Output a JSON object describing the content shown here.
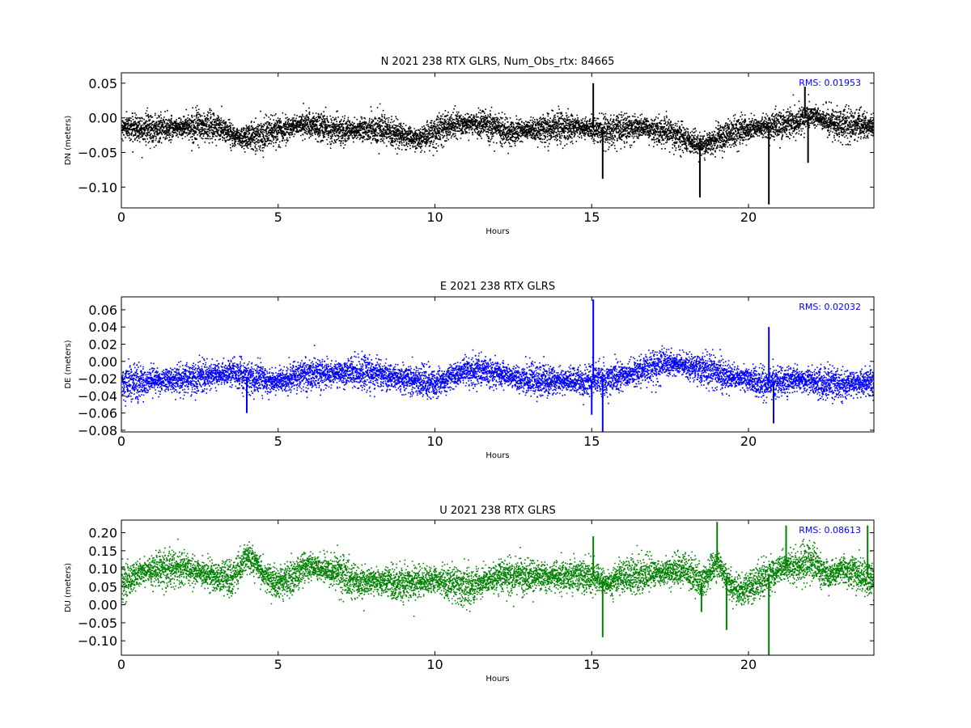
{
  "chart_data": [
    {
      "type": "scatter",
      "title": "N 2021 238 RTX  GLRS, Num_Obs_rtx: 84665",
      "xlabel": "Hours",
      "ylabel": "DN (meters)",
      "xlim": [
        0,
        24
      ],
      "ylim": [
        -0.13,
        0.065
      ],
      "xticks": [
        0,
        5,
        10,
        15,
        20
      ],
      "yticks": [
        0.05,
        0.0,
        -0.05,
        -0.1
      ],
      "ytick_labels": [
        "0.05",
        "0.00",
        "−0.05",
        "−0.10"
      ],
      "color": "#000000",
      "annotation": "RMS:  0.01953",
      "annotation_color": "#0000ff",
      "baseline": [
        [
          0,
          -0.012
        ],
        [
          1,
          -0.015
        ],
        [
          2,
          -0.012
        ],
        [
          3,
          -0.012
        ],
        [
          3.8,
          -0.028
        ],
        [
          5,
          -0.018
        ],
        [
          5.7,
          -0.008
        ],
        [
          7,
          -0.018
        ],
        [
          8,
          -0.015
        ],
        [
          9.5,
          -0.03
        ],
        [
          10.5,
          -0.01
        ],
        [
          11.5,
          -0.008
        ],
        [
          12.5,
          -0.02
        ],
        [
          13.5,
          -0.015
        ],
        [
          14.5,
          -0.012
        ],
        [
          15.5,
          -0.018
        ],
        [
          16.5,
          -0.012
        ],
        [
          17.5,
          -0.02
        ],
        [
          18.5,
          -0.04
        ],
        [
          19.5,
          -0.02
        ],
        [
          20.5,
          -0.012
        ],
        [
          21.5,
          -0.005
        ],
        [
          22,
          0.005
        ],
        [
          22.5,
          -0.005
        ],
        [
          23,
          -0.01
        ],
        [
          24,
          -0.012
        ]
      ],
      "spikes": [
        [
          15.05,
          0.05
        ],
        [
          15.35,
          -0.088
        ],
        [
          18.45,
          -0.115
        ],
        [
          20.65,
          -0.125
        ],
        [
          21.8,
          0.045
        ],
        [
          21.9,
          -0.065
        ]
      ]
    },
    {
      "type": "scatter",
      "title": "E 2021 238 RTX  GLRS",
      "xlabel": "Hours",
      "ylabel": "DE (meters)",
      "xlim": [
        0,
        24
      ],
      "ylim": [
        -0.082,
        0.075
      ],
      "xticks": [
        0,
        5,
        10,
        15,
        20
      ],
      "yticks": [
        0.06,
        0.04,
        0.02,
        0.0,
        -0.02,
        -0.04,
        -0.06,
        -0.08
      ],
      "ytick_labels": [
        "0.06",
        "0.04",
        "0.02",
        "0.00",
        "−0.02",
        "−0.04",
        "−0.06",
        "−0.08"
      ],
      "color": "#0000ff",
      "annotation": "RMS:  0.02032",
      "annotation_color": "#0000ff",
      "baseline": [
        [
          0,
          -0.025
        ],
        [
          1,
          -0.022
        ],
        [
          2,
          -0.02
        ],
        [
          3,
          -0.015
        ],
        [
          3.5,
          -0.012
        ],
        [
          4,
          -0.018
        ],
        [
          5,
          -0.022
        ],
        [
          6,
          -0.015
        ],
        [
          7,
          -0.012
        ],
        [
          8,
          -0.012
        ],
        [
          9,
          -0.02
        ],
        [
          10,
          -0.025
        ],
        [
          11,
          -0.01
        ],
        [
          11.5,
          -0.01
        ],
        [
          12.5,
          -0.018
        ],
        [
          13.5,
          -0.022
        ],
        [
          14.5,
          -0.022
        ],
        [
          15.5,
          -0.02
        ],
        [
          16.5,
          -0.01
        ],
        [
          17.5,
          -0.002
        ],
        [
          18.5,
          -0.008
        ],
        [
          19.5,
          -0.018
        ],
        [
          20.5,
          -0.025
        ],
        [
          21.5,
          -0.02
        ],
        [
          22.5,
          -0.025
        ],
        [
          24,
          -0.025
        ]
      ],
      "spikes": [
        [
          15.05,
          0.072
        ],
        [
          15.0,
          -0.062
        ],
        [
          15.35,
          -0.082
        ],
        [
          20.65,
          0.04
        ],
        [
          20.8,
          -0.072
        ],
        [
          4.0,
          -0.06
        ]
      ]
    },
    {
      "type": "scatter",
      "title": "U 2021 238 RTX  GLRS",
      "xlabel": "Hours",
      "ylabel": "DU (meters)",
      "xlim": [
        0,
        24
      ],
      "ylim": [
        -0.14,
        0.235
      ],
      "xticks": [
        0,
        5,
        10,
        15,
        20
      ],
      "yticks": [
        0.2,
        0.15,
        0.1,
        0.05,
        0.0,
        -0.05,
        -0.1
      ],
      "ytick_labels": [
        "0.20",
        "0.15",
        "0.10",
        "0.05",
        "0.00",
        "−0.05",
        "−0.10"
      ],
      "color": "#008000",
      "annotation": "RMS:  0.08613",
      "annotation_color": "#0000ff",
      "baseline": [
        [
          0,
          0.06
        ],
        [
          0.5,
          0.09
        ],
        [
          1,
          0.1
        ],
        [
          2,
          0.1
        ],
        [
          3,
          0.08
        ],
        [
          3.5,
          0.07
        ],
        [
          4,
          0.14
        ],
        [
          4.5,
          0.09
        ],
        [
          5,
          0.06
        ],
        [
          6,
          0.11
        ],
        [
          7,
          0.09
        ],
        [
          7.5,
          0.06
        ],
        [
          8,
          0.07
        ],
        [
          9,
          0.06
        ],
        [
          10,
          0.07
        ],
        [
          11,
          0.05
        ],
        [
          12,
          0.08
        ],
        [
          13,
          0.08
        ],
        [
          14,
          0.08
        ],
        [
          15,
          0.08
        ],
        [
          15.5,
          0.06
        ],
        [
          16,
          0.08
        ],
        [
          17,
          0.09
        ],
        [
          18,
          0.1
        ],
        [
          18.5,
          0.06
        ],
        [
          19,
          0.12
        ],
        [
          19.5,
          0.04
        ],
        [
          20,
          0.05
        ],
        [
          21,
          0.1
        ],
        [
          22,
          0.12
        ],
        [
          22.5,
          0.08
        ],
        [
          23,
          0.1
        ],
        [
          24,
          0.07
        ]
      ],
      "spikes": [
        [
          15.05,
          0.19
        ],
        [
          15.35,
          -0.09
        ],
        [
          18.5,
          -0.02
        ],
        [
          19.0,
          0.23
        ],
        [
          19.3,
          -0.07
        ],
        [
          20.65,
          -0.14
        ],
        [
          21.2,
          0.22
        ],
        [
          23.8,
          0.22
        ]
      ]
    }
  ]
}
